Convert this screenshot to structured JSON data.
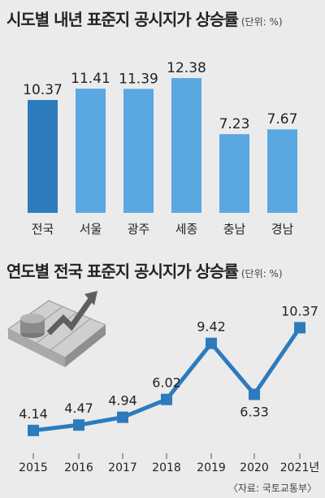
{
  "source": "〈자료: 국토교통부〉",
  "chart_data": [
    {
      "type": "bar",
      "title": "시도별 내년 표준지 공시지가 상승률",
      "unit": "(단위: %)",
      "categories": [
        "전국",
        "서울",
        "광주",
        "세종",
        "충남",
        "경남"
      ],
      "values": [
        10.37,
        11.41,
        11.39,
        12.38,
        7.23,
        7.67
      ],
      "value_labels": [
        "10.37",
        "11.41",
        "11.39",
        "12.38",
        "7.23",
        "7.67"
      ],
      "highlight_index": 0,
      "colors": {
        "highlight": "#2d7bbd",
        "bar": "#5ba7e2"
      }
    },
    {
      "type": "line",
      "title": "연도별 전국 표준지 공시지가 상승률",
      "unit": "(단위: %)",
      "x": [
        "2015",
        "2016",
        "2017",
        "2018",
        "2019",
        "2020",
        "2021년"
      ],
      "values": [
        4.14,
        4.47,
        4.94,
        6.02,
        9.42,
        6.33,
        10.37
      ],
      "value_labels": [
        "4.14",
        "4.47",
        "4.94",
        "6.02",
        "9.42",
        "6.33",
        "10.37"
      ],
      "colors": {
        "line": "#2d7bbd",
        "marker": "#2d7bbd"
      }
    }
  ]
}
